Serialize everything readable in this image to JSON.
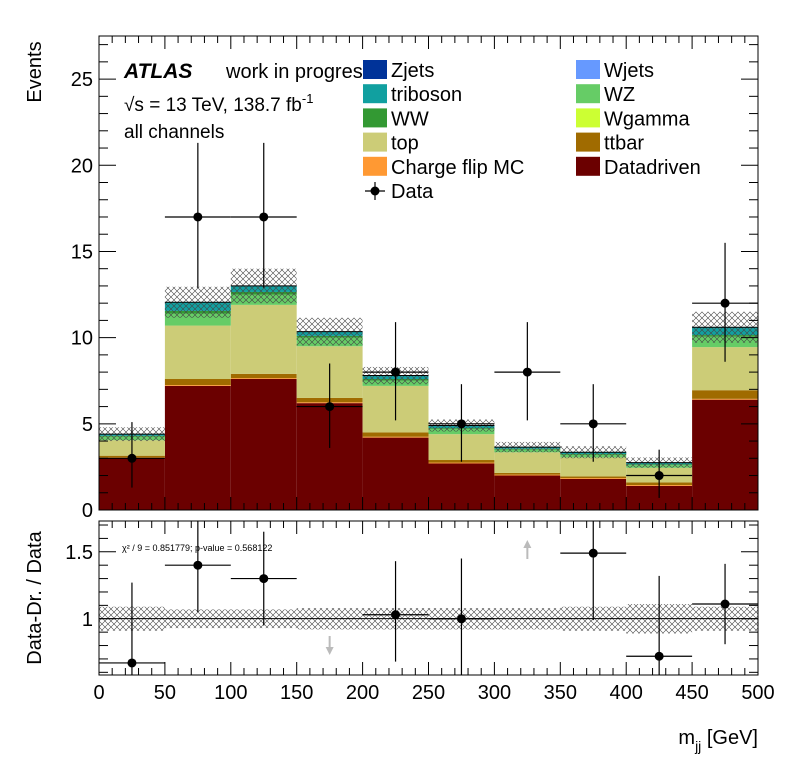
{
  "labels": {
    "atlas": "ATLAS",
    "work": "work in progress",
    "energy": "√s = 13 TeV, 138.7 fb",
    "energy_sup": "-1",
    "channels": "all channels",
    "xlabel_main": "m",
    "xlabel_sub": "jj",
    "xlabel_unit": " [GeV]",
    "ylabel_top": "Events",
    "ylabel_bottom": "Data-Dr. / Data",
    "chi2": "χ² / 9 = 0.851779; p-value = 0.568122"
  },
  "colors": {
    "Datadriven": "#6b0000",
    "Charge flip MC": "#ff9933",
    "ttbar": "#a06b00",
    "Wgamma": "#ccff33",
    "top": "#cccc77",
    "WZ": "#66cc66",
    "WW": "#339933",
    "Wjets": "#6699ff",
    "triboson": "#11a0a0",
    "Zjets": "#003399"
  },
  "chart_data": [
    {
      "type": "stacked-bar",
      "title": "",
      "xlabel": "m_jj [GeV]",
      "ylabel": "Events",
      "xlim": [
        0,
        500
      ],
      "ylim": [
        0,
        27.5
      ],
      "bin_edges": [
        0,
        50,
        100,
        150,
        200,
        250,
        300,
        350,
        400,
        450,
        500
      ],
      "yticks": [
        0,
        5,
        10,
        15,
        20,
        25
      ],
      "legend": [
        "Zjets",
        "Wjets",
        "triboson",
        "WZ",
        "WW",
        "Wgamma",
        "top",
        "ttbar",
        "Charge flip MC",
        "Datadriven",
        "Data"
      ],
      "series": [
        {
          "name": "Datadriven",
          "values": [
            3.0,
            7.2,
            7.6,
            6.2,
            4.2,
            2.7,
            2.0,
            1.8,
            1.4,
            6.4
          ]
        },
        {
          "name": "Charge flip MC",
          "values": [
            0.05,
            0.05,
            0.05,
            0.05,
            0.05,
            0.05,
            0.05,
            0.05,
            0.05,
            0.05
          ]
        },
        {
          "name": "ttbar",
          "values": [
            0.1,
            0.35,
            0.25,
            0.25,
            0.25,
            0.15,
            0.1,
            0.1,
            0.15,
            0.5
          ]
        },
        {
          "name": "Wgamma",
          "values": [
            0.0,
            0.0,
            0.0,
            0.0,
            0.0,
            0.0,
            0.0,
            0.0,
            0.0,
            0.0
          ]
        },
        {
          "name": "top",
          "values": [
            0.9,
            3.1,
            4.0,
            3.0,
            2.7,
            1.5,
            1.2,
            1.1,
            0.85,
            2.5
          ]
        },
        {
          "name": "WZ",
          "values": [
            0.2,
            0.7,
            0.6,
            0.5,
            0.3,
            0.3,
            0.15,
            0.15,
            0.15,
            0.6
          ]
        },
        {
          "name": "WW",
          "values": [
            0.05,
            0.15,
            0.15,
            0.1,
            0.1,
            0.05,
            0.05,
            0.05,
            0.05,
            0.1
          ]
        },
        {
          "name": "Wjets",
          "values": [
            0.0,
            0.0,
            0.0,
            0.0,
            0.0,
            0.0,
            0.0,
            0.0,
            0.0,
            0.0
          ]
        },
        {
          "name": "triboson",
          "values": [
            0.1,
            0.5,
            0.35,
            0.25,
            0.2,
            0.15,
            0.1,
            0.1,
            0.1,
            0.45
          ]
        },
        {
          "name": "Zjets",
          "values": [
            0.0,
            0.0,
            0.0,
            0.0,
            0.0,
            0.0,
            0.0,
            0.0,
            0.0,
            0.0
          ]
        }
      ],
      "uncertainty": [
        0.4,
        0.9,
        1.0,
        0.8,
        0.5,
        0.35,
        0.3,
        0.35,
        0.3,
        0.9
      ],
      "data": {
        "name": "Data",
        "x": [
          25,
          75,
          125,
          175,
          225,
          275,
          325,
          375,
          425,
          475
        ],
        "y": [
          3,
          17,
          17,
          6,
          8,
          5,
          8,
          5,
          2,
          12
        ],
        "err_up": [
          2.1,
          4.3,
          4.3,
          2.5,
          2.9,
          2.3,
          2.9,
          2.3,
          1.5,
          3.5
        ],
        "err_down": [
          1.7,
          4.1,
          4.1,
          2.4,
          2.8,
          2.2,
          2.8,
          2.2,
          1.3,
          3.4
        ]
      }
    },
    {
      "type": "ratio",
      "xlabel": "m_jj [GeV]",
      "ylabel": "Data-Dr. / Data",
      "xlim": [
        0,
        500
      ],
      "ylim": [
        0.58,
        1.73
      ],
      "yticks": [
        1,
        1.5
      ],
      "reference_line": 1,
      "band_halfwidth": [
        0.09,
        0.07,
        0.07,
        0.08,
        0.08,
        0.08,
        0.08,
        0.09,
        0.11,
        0.09
      ],
      "points": {
        "x": [
          25,
          75,
          125,
          175,
          225,
          275,
          325,
          375,
          425,
          475
        ],
        "y": [
          0.67,
          1.4,
          1.3,
          null,
          1.03,
          1.0,
          null,
          1.49,
          0.72,
          1.11
        ],
        "err_up": [
          0.6,
          0.35,
          0.35,
          0,
          0.4,
          0.45,
          0,
          0.5,
          0.6,
          0.3
        ],
        "err_down": [
          0.5,
          0.35,
          0.35,
          0,
          0.35,
          0.45,
          0,
          0.5,
          0.5,
          0.3
        ]
      },
      "arrows": [
        {
          "x": 175,
          "direction": "down"
        },
        {
          "x": 325,
          "direction": "up"
        }
      ]
    }
  ]
}
